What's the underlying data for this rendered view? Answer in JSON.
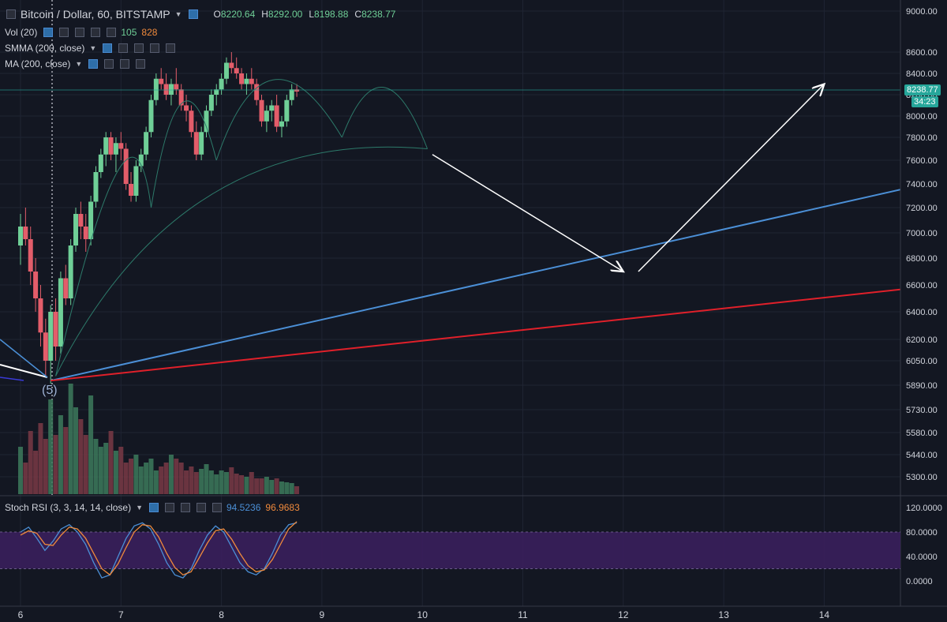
{
  "header": {
    "symbol": "Bitcoin / Dollar, 60, BITSTAMP",
    "ohlc": [
      {
        "label": "O",
        "value": "8220.64"
      },
      {
        "label": "H",
        "value": "8292.00"
      },
      {
        "label": "L",
        "value": "8198.88"
      },
      {
        "label": "C",
        "value": "8238.77"
      }
    ]
  },
  "indicators": {
    "vol": {
      "name": "Vol (20)",
      "v1": "105",
      "v2": "828"
    },
    "smma": {
      "name": "SMMA (200, close)"
    },
    "ma": {
      "name": "MA (200, close)"
    },
    "stoch": {
      "name": "Stoch RSI (3, 3, 14, 14, close)",
      "k": "94.5236",
      "d": "96.9683"
    }
  },
  "price_axis": {
    "ticks": [
      "9000.00",
      "8600.00",
      "8400.00",
      "8200.00",
      "8000.00",
      "7800.00",
      "7600.00",
      "7400.00",
      "7200.00",
      "7000.00",
      "6800.00",
      "6600.00",
      "6400.00",
      "6200.00",
      "6050.00",
      "5890.00",
      "5730.00",
      "5580.00",
      "5440.00",
      "5300.00"
    ],
    "last_price": "8238.77",
    "countdown": "34:23"
  },
  "rsi_axis": {
    "ticks": [
      "120.0000",
      "80.0000",
      "40.0000",
      "0.0000"
    ]
  },
  "time_axis": {
    "ticks": [
      "6",
      "7",
      "8",
      "9",
      "10",
      "11",
      "12",
      "13",
      "14"
    ]
  },
  "annotations": {
    "wave_label": "(5)"
  },
  "colors": {
    "background": "#131722",
    "up_candle": "#6fcf97",
    "down_candle": "#e35d6a",
    "blue_line": "#4b8fd6",
    "red_line": "#e0202a",
    "stoch_band": "#3a1f5c",
    "stoch_k": "#4b8fd6",
    "stoch_d": "#f08a3c"
  },
  "chart_data": {
    "type": "candlestick",
    "x_unit": "day (hourly candles)",
    "xlim": [
      6,
      14.8
    ],
    "ylim": [
      5200,
      9100
    ],
    "candles": [
      [
        6.0,
        6900,
        7150,
        6750,
        7050
      ],
      [
        6.05,
        7050,
        7200,
        6900,
        6950
      ],
      [
        6.1,
        6950,
        7050,
        6600,
        6700
      ],
      [
        6.15,
        6700,
        6800,
        6400,
        6500
      ],
      [
        6.2,
        6500,
        6600,
        6150,
        6250
      ],
      [
        6.25,
        6250,
        6350,
        5950,
        6050
      ],
      [
        6.3,
        6050,
        6450,
        5900,
        6400
      ],
      [
        6.35,
        6400,
        6500,
        6050,
        6150
      ],
      [
        6.4,
        6150,
        6700,
        6100,
        6650
      ],
      [
        6.45,
        6650,
        6750,
        6450,
        6500
      ],
      [
        6.5,
        6500,
        6950,
        6450,
        6900
      ],
      [
        6.55,
        6900,
        7200,
        6850,
        7150
      ],
      [
        6.6,
        7150,
        7250,
        6950,
        7050
      ],
      [
        6.65,
        7050,
        7150,
        6850,
        6950
      ],
      [
        6.7,
        6950,
        7300,
        6900,
        7250
      ],
      [
        6.75,
        7250,
        7550,
        7200,
        7500
      ],
      [
        6.8,
        7500,
        7700,
        7450,
        7650
      ],
      [
        6.85,
        7650,
        7850,
        7550,
        7800
      ],
      [
        6.9,
        7800,
        7850,
        7600,
        7650
      ],
      [
        6.95,
        7650,
        7800,
        7500,
        7750
      ],
      [
        7.0,
        7750,
        7850,
        7600,
        7700
      ],
      [
        7.05,
        7700,
        7750,
        7350,
        7400
      ],
      [
        7.1,
        7400,
        7500,
        7250,
        7300
      ],
      [
        7.15,
        7300,
        7600,
        7250,
        7550
      ],
      [
        7.2,
        7550,
        7700,
        7500,
        7650
      ],
      [
        7.25,
        7650,
        7900,
        7600,
        7850
      ],
      [
        7.3,
        7850,
        8200,
        7800,
        8150
      ],
      [
        7.35,
        8150,
        8400,
        8100,
        8350
      ],
      [
        7.4,
        8350,
        8450,
        8250,
        8300
      ],
      [
        7.45,
        8300,
        8400,
        8150,
        8200
      ],
      [
        7.5,
        8200,
        8350,
        8100,
        8300
      ],
      [
        7.55,
        8300,
        8450,
        8200,
        8250
      ],
      [
        7.6,
        8250,
        8300,
        8050,
        8100
      ],
      [
        7.65,
        8100,
        8200,
        7950,
        8050
      ],
      [
        7.7,
        8050,
        8100,
        7800,
        7850
      ],
      [
        7.75,
        7850,
        7950,
        7600,
        7650
      ],
      [
        7.8,
        7650,
        7900,
        7600,
        7850
      ],
      [
        7.85,
        7850,
        8100,
        7800,
        8050
      ],
      [
        7.9,
        8050,
        8250,
        8000,
        8200
      ],
      [
        7.95,
        8200,
        8300,
        8100,
        8250
      ],
      [
        8.0,
        8250,
        8400,
        8200,
        8350
      ],
      [
        8.05,
        8350,
        8550,
        8300,
        8500
      ],
      [
        8.1,
        8500,
        8600,
        8400,
        8450
      ],
      [
        8.15,
        8450,
        8550,
        8350,
        8400
      ],
      [
        8.2,
        8400,
        8450,
        8250,
        8300
      ],
      [
        8.25,
        8300,
        8400,
        8200,
        8350
      ],
      [
        8.3,
        8350,
        8450,
        8250,
        8300
      ],
      [
        8.35,
        8300,
        8350,
        8100,
        8150
      ],
      [
        8.4,
        8150,
        8200,
        7900,
        7950
      ],
      [
        8.45,
        7950,
        8100,
        7850,
        8050
      ],
      [
        8.5,
        8050,
        8150,
        7950,
        8100
      ],
      [
        8.55,
        8100,
        8200,
        7850,
        7900
      ],
      [
        8.6,
        7900,
        8000,
        7800,
        7950
      ],
      [
        8.65,
        7950,
        8200,
        7900,
        8150
      ],
      [
        8.7,
        8150,
        8300,
        8100,
        8250
      ],
      [
        8.75,
        8250,
        8300,
        8180,
        8230
      ]
    ],
    "trendlines": [
      {
        "name": "",
        "color": "#4b8fd6",
        "from": [
          6.3,
          5920
        ],
        "to": [
          14.8,
          7360
        ]
      },
      {
        "name": "",
        "color": "#e0202a",
        "from": [
          6.3,
          5920
        ],
        "to": [
          14.8,
          6570
        ]
      }
    ],
    "arrows": [
      {
        "from": [
          10.1,
          7650
        ],
        "to": [
          12.0,
          6700
        ]
      },
      {
        "from": [
          12.15,
          6700
        ],
        "to": [
          14.0,
          8300
        ]
      }
    ],
    "stoch_rsi": {
      "ylim": [
        -20,
        130
      ],
      "band": [
        20,
        80
      ],
      "k": [
        80,
        88,
        70,
        50,
        65,
        85,
        92,
        80,
        60,
        30,
        5,
        10,
        40,
        70,
        90,
        95,
        85,
        60,
        30,
        10,
        5,
        20,
        50,
        75,
        90,
        80,
        55,
        30,
        15,
        10,
        20,
        45,
        75,
        92,
        95
      ],
      "d": [
        75,
        82,
        78,
        60,
        58,
        75,
        88,
        85,
        70,
        45,
        20,
        10,
        28,
        55,
        80,
        92,
        90,
        72,
        45,
        22,
        10,
        15,
        38,
        62,
        82,
        85,
        68,
        45,
        25,
        15,
        18,
        35,
        60,
        85,
        97
      ]
    }
  }
}
